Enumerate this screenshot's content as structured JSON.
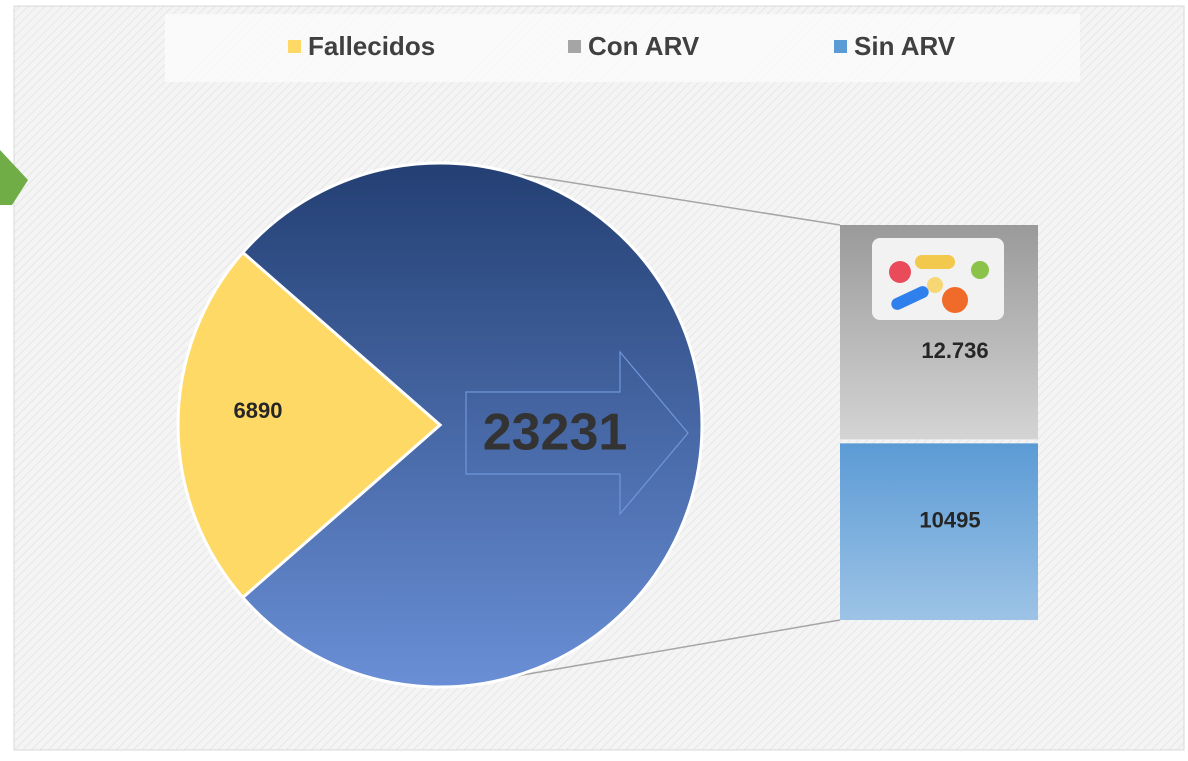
{
  "chart_data": {
    "type": "bar-of-pie",
    "categories": [
      "Fallecidos",
      "Con ARV",
      "Sin ARV"
    ],
    "colors": [
      "#ffd966",
      "#a5a5a5",
      "#5b9bd5"
    ],
    "values": [
      6890,
      12736,
      10495
    ],
    "value_labels": [
      "6890",
      "12.736",
      "10495"
    ],
    "combined": 23231,
    "legend": "top"
  }
}
